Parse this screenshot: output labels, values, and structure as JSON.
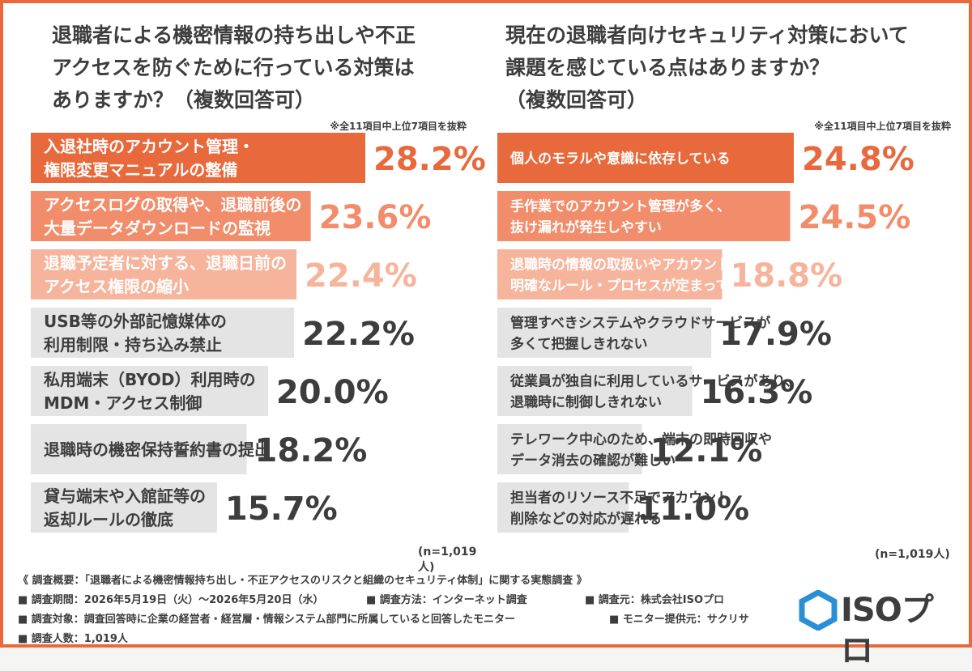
{
  "chart_data": [
    {
      "type": "bar",
      "orientation": "horizontal",
      "title": "退職者による機密情報の持ち出しや不正\nアクセスを防ぐために行っている対策は\nありますか？（複数回答可）",
      "note": "※全11項目中上位7項目を抜粋",
      "categories": [
        "入退社時のアカウント管理・\n権限変更マニュアルの整備",
        "アクセスログの取得や、退職前後の\n大量データダウンロードの監視",
        "退職予定者に対する、退職日前の\nアクセス権限の縮小",
        "USB等の外部記憶媒体の\n利用制限・持ち込み禁止",
        "私用端末（BYOD）利用時の\nMDM・アクセス制御",
        "退職時の機密保持誓約書の提出",
        "貸与端末や入館証等の\n返却ルールの徹底"
      ],
      "values": [
        28.2,
        23.6,
        22.4,
        22.2,
        20.0,
        18.2,
        15.7
      ],
      "value_labels": [
        "28.2%",
        "23.6%",
        "22.4%",
        "22.2%",
        "20.0%",
        "18.2%",
        "15.7%"
      ],
      "colors": [
        "#e8693c",
        "#f28d6b",
        "#f7b49c",
        "#e4e4e4",
        "#e4e4e4",
        "#e4e4e4",
        "#e4e4e4"
      ],
      "value_colors": [
        "#e8693c",
        "#f28d6b",
        "#f7b49c",
        "#3d3d3d",
        "#3d3d3d",
        "#3d3d3d",
        "#3d3d3d"
      ],
      "label_colors": [
        "#ffffff",
        "#ffffff",
        "#ffffff",
        "#3d3d3d",
        "#3d3d3d",
        "#3d3d3d",
        "#3d3d3d"
      ],
      "sample": "(n=1,019人)"
    },
    {
      "type": "bar",
      "orientation": "horizontal",
      "title": "現在の退職者向けセキュリティ対策において\n課題を感じている点はありますか？\n（複数回答可）",
      "note": "※全11項目中上位7項目を抜粋",
      "categories": [
        "個人のモラルや意識に依存している",
        "手作業でのアカウント管理が多く、\n抜け漏れが発生しやすい",
        "退職時の情報の取扱いやアカウント停止に関する\n明確なルール・プロセスが定まっていない",
        "管理すべきシステムやクラウドサービスが\n多くて把握しきれない",
        "従業員が独自に利用しているサービスがあり、\n退職時に制御しきれない",
        "テレワーク中心のため、端末の即時回収や\nデータ消去の確認が難しい",
        "担当者のリソース不足でアカウント\n削除などの対応が遅れる"
      ],
      "values": [
        24.8,
        24.5,
        18.8,
        17.9,
        16.3,
        12.1,
        11.0
      ],
      "value_labels": [
        "24.8%",
        "24.5%",
        "18.8%",
        "17.9%",
        "16.3%",
        "12.1%",
        "11.0%"
      ],
      "colors": [
        "#e8693c",
        "#f28d6b",
        "#f7b49c",
        "#e4e4e4",
        "#e4e4e4",
        "#e4e4e4",
        "#e4e4e4"
      ],
      "value_colors": [
        "#e8693c",
        "#f28d6b",
        "#f7b49c",
        "#3d3d3d",
        "#3d3d3d",
        "#3d3d3d",
        "#3d3d3d"
      ],
      "label_colors": [
        "#ffffff",
        "#ffffff",
        "#ffffff",
        "#3d3d3d",
        "#3d3d3d",
        "#3d3d3d",
        "#3d3d3d"
      ],
      "sample": "(n=1,019人)"
    }
  ],
  "footer": {
    "summary": "《 調査概要：「退職者による機密情報持ち出し・不正アクセスのリスクと組織のセキュリティ体制」に関する実態調査 》",
    "period": "■ 調査期間：2026年5月19日（火）〜2026年5月20日（水）",
    "method": "■ 調査方法：インターネット調査",
    "source": "■ 調査元：株式会社ISOプロ",
    "target": "■ 調査対象：調査回答時に企業の経営者・経営層・情報システム部門に所属していると回答したモニター",
    "provider": "■ モニター提供元：サクリサ",
    "count": "■ 調査人数：1,019人"
  },
  "logo": {
    "text": "ISOプロ",
    "icon": "hexagon-logo-icon",
    "colors": [
      "#2b8fd6",
      "#7cc4f0"
    ]
  }
}
